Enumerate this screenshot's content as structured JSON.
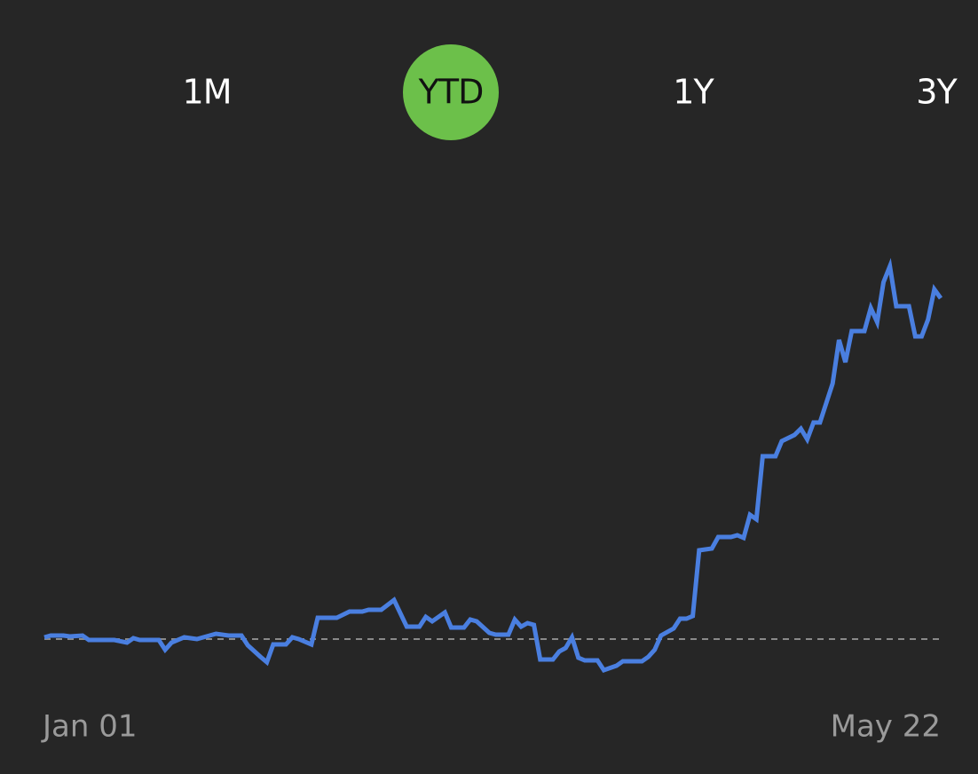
{
  "tabs": [
    "1M",
    "YTD",
    "1Y",
    "3Y"
  ],
  "selected_tab": 1,
  "chart_data": {
    "type": "line",
    "x": [
      0,
      1,
      3,
      4,
      6,
      7,
      11,
      13,
      14,
      15,
      18,
      19,
      20,
      22,
      24,
      27,
      29,
      31,
      32,
      34,
      35,
      36,
      38,
      39,
      40,
      42,
      43,
      46,
      48,
      50,
      51,
      53,
      55,
      57,
      59,
      60,
      61,
      63,
      64,
      66,
      67,
      68,
      70,
      71,
      73,
      74,
      75,
      76,
      77,
      78,
      80,
      81,
      82,
      83,
      84,
      85,
      87,
      88,
      90,
      91,
      94,
      95,
      96,
      97,
      99,
      100,
      101,
      102,
      103,
      105,
      106,
      108,
      109,
      110,
      111,
      112,
      113,
      115,
      116,
      118,
      119,
      120,
      121,
      122,
      124,
      125,
      126,
      127,
      129,
      130,
      131,
      132,
      133,
      134,
      136,
      137,
      138,
      139,
      140,
      141
    ],
    "series": [
      {
        "color": "#4a7fe0",
        "values": [
          0.2,
          0.4,
          0.4,
          0.3,
          0.4,
          -0.1,
          -0.1,
          -0.4,
          0.1,
          -0.1,
          -0.1,
          -1.2,
          -0.4,
          0.2,
          0,
          0.6,
          0.4,
          0.4,
          -0.7,
          -2,
          -2.6,
          -0.6,
          -0.6,
          0.2,
          0,
          -0.6,
          2.4,
          2.4,
          3.1,
          3.1,
          3.3,
          3.3,
          4.4,
          1.4,
          1.4,
          2.5,
          2,
          3,
          1.3,
          1.3,
          2.2,
          2,
          0.7,
          0.5,
          0.5,
          2.2,
          1.4,
          1.8,
          1.6,
          -2.3,
          -2.3,
          -1.4,
          -1,
          0.2,
          -2.1,
          -2.4,
          -2.4,
          -3.5,
          -3,
          -2.5,
          -2.5,
          -2,
          -1.2,
          0.4,
          1.2,
          2.3,
          2.3,
          2.6,
          10,
          10.2,
          11.5,
          11.5,
          11.7,
          11.4,
          14,
          13.5,
          20.6,
          20.6,
          22.3,
          23,
          23.7,
          22.5,
          24.4,
          24.4,
          28.8,
          33.7,
          31.2,
          34.7,
          34.7,
          37.3,
          35.7,
          40.2,
          42,
          37.5,
          37.5,
          34.1,
          34.1,
          36,
          39.4,
          38.4
        ]
      }
    ],
    "xlim": [
      0,
      141
    ],
    "ylim": [
      -6,
      50
    ],
    "xticks": [
      {
        "value": 0,
        "label": "Jan 01"
      },
      {
        "value": 141,
        "label": "May 22"
      }
    ],
    "baseline": 0
  }
}
